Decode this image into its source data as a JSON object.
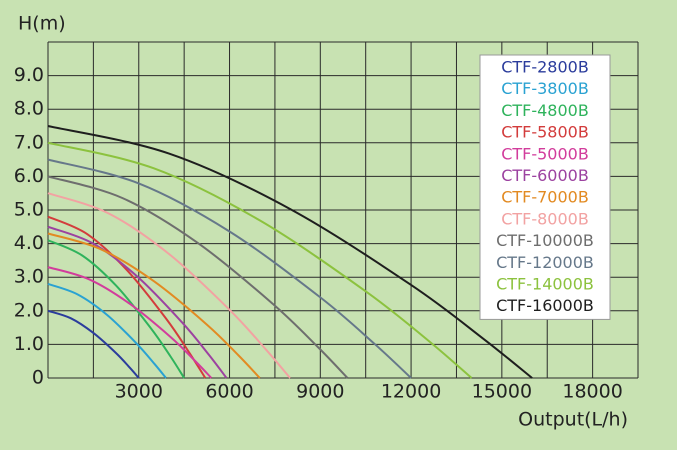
{
  "chart_data": {
    "type": "line",
    "y_label": "H(m)",
    "x_label": "Output(L/h)",
    "xlim": [
      0,
      19500
    ],
    "ylim": [
      0,
      10
    ],
    "xticks": [
      3000,
      6000,
      9000,
      12000,
      15000,
      18000
    ],
    "xgrid": [
      0,
      1500,
      3000,
      4500,
      6000,
      7500,
      9000,
      10500,
      12000,
      13500,
      15000,
      16500,
      18000,
      19500
    ],
    "yticks": [
      0,
      {
        "value": 1,
        "label": "1.0"
      },
      {
        "value": 2,
        "label": "2.0"
      },
      {
        "value": 3,
        "label": "3.0"
      },
      {
        "value": 4,
        "label": "4.0"
      },
      {
        "value": 5,
        "label": "5.0"
      },
      {
        "value": 6,
        "label": "6.0"
      },
      {
        "value": 7,
        "label": "7.0"
      },
      {
        "value": 8,
        "label": "8.0"
      },
      {
        "value": 9,
        "label": "9.0"
      }
    ],
    "ygrid": [
      0,
      1,
      2,
      3,
      4,
      5,
      6,
      7,
      8,
      9,
      10
    ],
    "grid": true,
    "legend": "upper right",
    "series": [
      {
        "name": "CTF-2800B",
        "color": "#2b3c9c",
        "x": [
          0,
          750,
          1500,
          2250,
          2700,
          3000
        ],
        "values": [
          2.0,
          1.78,
          1.34,
          0.74,
          0.31,
          0
        ]
      },
      {
        "name": "CTF-3800B",
        "color": "#2aa2d2",
        "x": [
          0,
          975,
          1950,
          2925,
          3510,
          3900
        ],
        "values": [
          2.8,
          2.49,
          1.88,
          1.03,
          0.43,
          0
        ]
      },
      {
        "name": "CTF-4800B",
        "color": "#2fb35c",
        "x": [
          0,
          1125,
          2250,
          3375,
          4050,
          4500
        ],
        "values": [
          4.1,
          3.65,
          2.75,
          1.51,
          0.64,
          0
        ]
      },
      {
        "name": "CTF-5800B",
        "color": "#d33c3c",
        "x": [
          0,
          1300,
          2600,
          3900,
          4680,
          5200
        ],
        "values": [
          4.8,
          4.28,
          3.22,
          1.77,
          0.74,
          0
        ]
      },
      {
        "name": "CTF-5000B",
        "color": "#d23c9c",
        "x": [
          0,
          1350,
          2700,
          4050,
          4860,
          5400
        ],
        "values": [
          3.3,
          2.94,
          2.21,
          1.22,
          0.51,
          0
        ]
      },
      {
        "name": "CTF-6000B",
        "color": "#9c42a0",
        "x": [
          0,
          1475,
          2950,
          4425,
          5310,
          5900
        ],
        "values": [
          4.5,
          4.01,
          3.02,
          1.66,
          0.7,
          0
        ]
      },
      {
        "name": "CTF-7000B",
        "color": "#e28a22",
        "x": [
          0,
          1750,
          3500,
          5250,
          6300,
          7000
        ],
        "values": [
          4.3,
          3.83,
          2.88,
          1.59,
          0.67,
          0
        ]
      },
      {
        "name": "CTF-8000B",
        "color": "#f2a2a2",
        "x": [
          0,
          2000,
          4000,
          6000,
          7200,
          8000
        ],
        "values": [
          5.5,
          4.9,
          3.69,
          2.03,
          0.85,
          0
        ]
      },
      {
        "name": "CTF-10000B",
        "color": "#6e6e6e",
        "x": [
          0,
          2475,
          4950,
          7425,
          8910,
          9900
        ],
        "values": [
          6.0,
          5.35,
          4.02,
          2.21,
          0.93,
          0
        ]
      },
      {
        "name": "CTF-12000B",
        "color": "#66788a",
        "x": [
          0,
          3000,
          6000,
          9000,
          10800,
          12000
        ],
        "values": [
          6.5,
          5.79,
          4.36,
          2.4,
          1.01,
          0
        ]
      },
      {
        "name": "CTF-14000B",
        "color": "#8cc23e",
        "x": [
          0,
          3500,
          7000,
          10500,
          12600,
          14000
        ],
        "values": [
          7.0,
          6.24,
          4.69,
          2.58,
          1.09,
          0
        ]
      },
      {
        "name": "CTF-16000B",
        "color": "#1e1e1e",
        "x": [
          0,
          4000,
          8000,
          12000,
          14400,
          16000
        ],
        "values": [
          7.5,
          6.68,
          5.03,
          2.77,
          1.16,
          0
        ]
      }
    ]
  }
}
